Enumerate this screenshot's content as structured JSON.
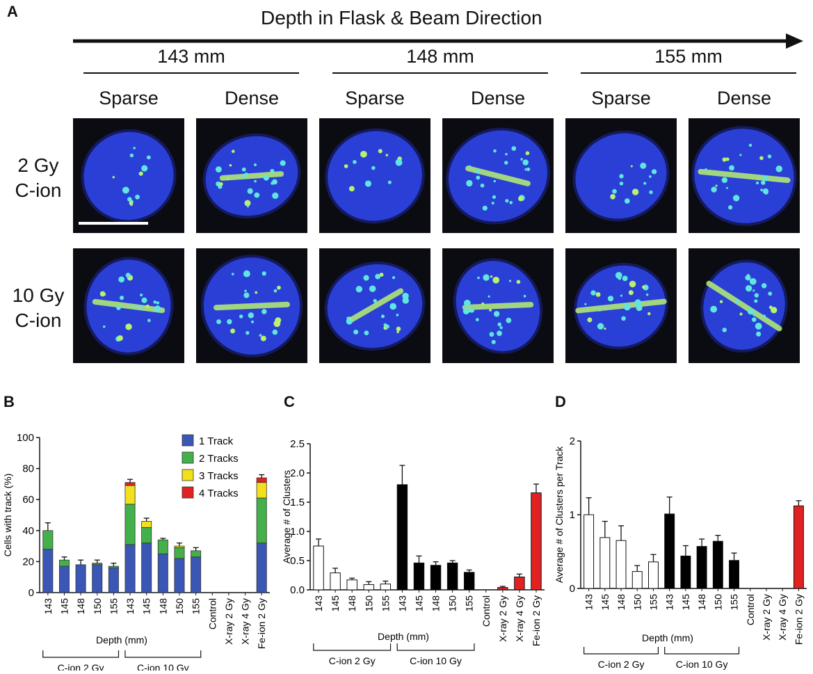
{
  "panelA": {
    "label": "A",
    "title": "Depth in Flask & Beam Direction",
    "depths": [
      "143 mm",
      "148 mm",
      "155 mm"
    ],
    "columns": [
      "Sparse",
      "Dense",
      "Sparse",
      "Dense",
      "Sparse",
      "Dense"
    ],
    "rows": [
      {
        "line1": "2 Gy",
        "line2": "C-ion"
      },
      {
        "line1": "10 Gy",
        "line2": "C-ion"
      }
    ],
    "colors": {
      "nucleus": "#2a3fd6",
      "foci": "#5fe6e0",
      "track": "#b8f070",
      "background": "#0b0b12"
    }
  },
  "panelB": {
    "label": "B",
    "chart_data": {
      "type": "bar",
      "stacked": true,
      "categories": [
        "143",
        "145",
        "148",
        "150",
        "155",
        "143",
        "145",
        "148",
        "150",
        "155",
        "Control",
        "X-ray 2 Gy",
        "X-ray 4 Gy",
        "Fe-ion 2 Gy"
      ],
      "ylabel": "Cells with track (%)",
      "ylim": [
        0,
        100
      ],
      "yticks": [
        0,
        20,
        40,
        60,
        80,
        100
      ],
      "xlabel": "Depth (mm)",
      "groups": [
        "C-ion 2 Gy",
        "C-ion 10 Gy"
      ],
      "legend_position": "top-right",
      "series": [
        {
          "name": "1 Track",
          "color": "#3b57b5",
          "values": [
            28,
            17,
            18,
            18,
            16,
            31,
            32,
            25,
            22,
            23,
            0,
            0,
            0,
            32
          ]
        },
        {
          "name": "2 Tracks",
          "color": "#43b04a",
          "values": [
            12,
            4,
            0,
            1,
            1,
            26,
            10,
            9,
            7,
            4,
            0,
            0,
            0,
            29
          ]
        },
        {
          "name": "3 Tracks",
          "color": "#f3e01a",
          "values": [
            0,
            0,
            0,
            0,
            0,
            12,
            4,
            0,
            1,
            0,
            0,
            0,
            0,
            10
          ]
        },
        {
          "name": "4 Tracks",
          "color": "#e02222",
          "values": [
            0,
            0,
            0,
            0,
            0,
            2,
            0,
            0,
            0,
            0,
            0,
            0,
            0,
            3
          ]
        }
      ],
      "errors": [
        5,
        2,
        3,
        2,
        2,
        2,
        2,
        1,
        2,
        2,
        0,
        0,
        0,
        2
      ]
    }
  },
  "panelC": {
    "label": "C",
    "chart_data": {
      "type": "bar",
      "categories": [
        "143",
        "145",
        "148",
        "150",
        "155",
        "143",
        "145",
        "148",
        "150",
        "155",
        "Control",
        "X-ray 2 Gy",
        "X-ray 4 Gy",
        "Fe-ion 2 Gy"
      ],
      "values": [
        0.75,
        0.29,
        0.17,
        0.09,
        0.1,
        1.8,
        0.46,
        0.42,
        0.46,
        0.3,
        0,
        0.04,
        0.22,
        1.66
      ],
      "errors": [
        0.12,
        0.08,
        0.03,
        0.05,
        0.05,
        0.33,
        0.12,
        0.06,
        0.04,
        0.04,
        0,
        0.02,
        0.05,
        0.15
      ],
      "colors": [
        "#ffffff",
        "#ffffff",
        "#ffffff",
        "#ffffff",
        "#ffffff",
        "#000000",
        "#000000",
        "#000000",
        "#000000",
        "#000000",
        "#000000",
        "#e02222",
        "#e02222",
        "#e02222"
      ],
      "ylabel": "Average # of Clusters",
      "ylim": [
        0,
        2.5
      ],
      "yticks": [
        "0.0",
        "0.5",
        "1.0",
        "1.5",
        "2.0",
        "2.5"
      ],
      "xlabel": "Depth (mm)",
      "groups": [
        "C-ion 2 Gy",
        "C-ion 10 Gy"
      ]
    }
  },
  "panelD": {
    "label": "D",
    "chart_data": {
      "type": "bar",
      "categories": [
        "143",
        "145",
        "148",
        "150",
        "155",
        "143",
        "145",
        "148",
        "150",
        "155",
        "Control",
        "X-ray 2 Gy",
        "X-ray 4 Gy",
        "Fe-ion 2 Gy"
      ],
      "values": [
        1.0,
        0.69,
        0.65,
        0.23,
        0.36,
        1.01,
        0.44,
        0.57,
        0.64,
        0.38,
        0,
        0,
        0,
        1.12
      ],
      "errors": [
        0.23,
        0.22,
        0.2,
        0.08,
        0.1,
        0.23,
        0.14,
        0.1,
        0.08,
        0.1,
        0,
        0,
        0,
        0.07
      ],
      "colors": [
        "#ffffff",
        "#ffffff",
        "#ffffff",
        "#ffffff",
        "#ffffff",
        "#000000",
        "#000000",
        "#000000",
        "#000000",
        "#000000",
        "#000000",
        "#e02222",
        "#e02222",
        "#e02222"
      ],
      "ylabel": "Average # of Clusters per Track",
      "ylim": [
        0,
        2
      ],
      "yticks": [
        "0",
        "1",
        "2"
      ],
      "xlabel": "Depth (mm)",
      "groups": [
        "C-ion 2 Gy",
        "C-ion 10 Gy"
      ]
    }
  }
}
